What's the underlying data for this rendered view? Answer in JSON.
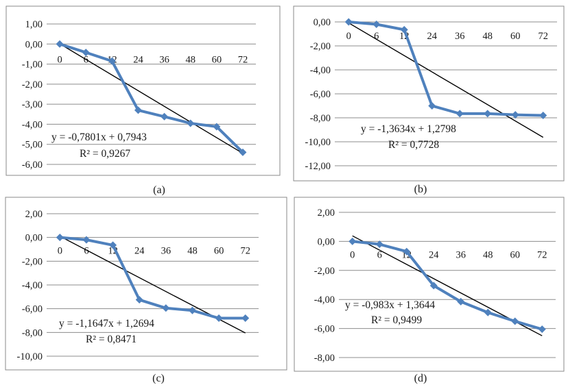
{
  "chart_data": [
    {
      "type": "line",
      "caption": "(a)",
      "categories": [
        "0",
        "6",
        "12",
        "24",
        "36",
        "48",
        "60",
        "72"
      ],
      "values": [
        0.0,
        -0.42,
        -0.85,
        -3.3,
        -3.62,
        -3.95,
        -4.12,
        -5.4
      ],
      "ylim": [
        -6.0,
        1.0
      ],
      "yticks": [
        "1,00",
        "0,00",
        "-1,00",
        "-2,00",
        "-3,00",
        "-4,00",
        "-5,00",
        "-6,00"
      ],
      "trendline": {
        "slope": -0.7801,
        "intercept": 0.7943,
        "r2": 0.9267
      },
      "equation": "y = -0,7801x + 0,7943",
      "r2_label": "R² = 0,9267",
      "grid": true,
      "color": "#4f81bd"
    },
    {
      "type": "line",
      "caption": "(b)",
      "categories": [
        "0",
        "6",
        "12",
        "24",
        "36",
        "48",
        "60",
        "72"
      ],
      "values": [
        0.0,
        -0.2,
        -0.65,
        -7.0,
        -7.65,
        -7.65,
        -7.75,
        -7.8
      ],
      "ylim": [
        -12.0,
        0.0
      ],
      "yticks": [
        "0,00",
        "-2,00",
        "-4,00",
        "-6,00",
        "-8,00",
        "-10,00",
        "-12,00"
      ],
      "trendline": {
        "slope": -1.3634,
        "intercept": 1.2798,
        "r2": 0.7728
      },
      "equation": "y = -1,3634x + 1,2798",
      "r2_label": "R² = 0,7728",
      "grid": true,
      "color": "#4f81bd"
    },
    {
      "type": "line",
      "caption": "(c)",
      "categories": [
        "0",
        "6",
        "12",
        "24",
        "36",
        "48",
        "60",
        "72"
      ],
      "values": [
        0.0,
        -0.2,
        -0.65,
        -5.25,
        -5.95,
        -6.15,
        -6.8,
        -6.8
      ],
      "ylim": [
        -10.0,
        2.0
      ],
      "yticks": [
        "2,00",
        "0,00",
        "-2,00",
        "-4,00",
        "-6,00",
        "-8,00",
        "-10,00"
      ],
      "trendline": {
        "slope": -1.1647,
        "intercept": 1.2694,
        "r2": 0.8471
      },
      "equation": "y = -1,1647x + 1,2694",
      "r2_label": "R² = 0,8471",
      "grid": true,
      "color": "#4f81bd"
    },
    {
      "type": "line",
      "caption": "(d)",
      "categories": [
        "0",
        "6",
        "12",
        "24",
        "36",
        "48",
        "60",
        "72"
      ],
      "values": [
        0.0,
        -0.2,
        -0.7,
        -3.05,
        -4.15,
        -4.9,
        -5.5,
        -6.05
      ],
      "ylim": [
        -8.0,
        2.0
      ],
      "yticks": [
        "2,00",
        "0,00",
        "-2,00",
        "-4,00",
        "-6,00",
        "-8,00"
      ],
      "trendline": {
        "slope": -0.983,
        "intercept": 1.3644,
        "r2": 0.9499
      },
      "equation": "y = -0,983x + 1,3644",
      "r2_label": "R² = 0,9499",
      "grid": true,
      "color": "#4f81bd"
    }
  ]
}
